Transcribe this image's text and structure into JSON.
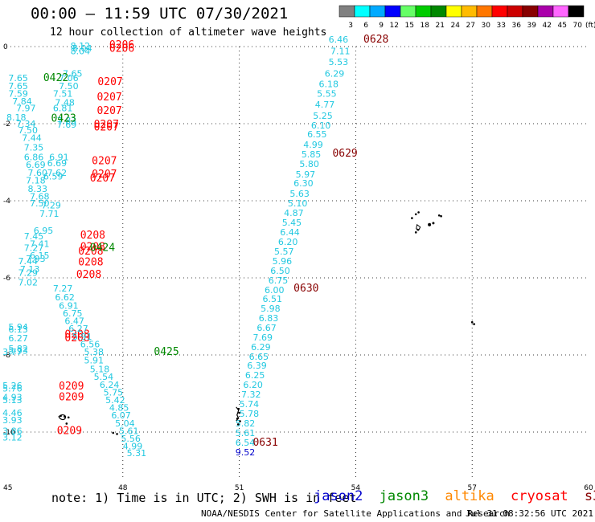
{
  "header": {
    "title": "00:00 — 11:59 UTC 07/30/2021",
    "subtitle": "12 hour collection of altimeter wave heights"
  },
  "legend": {
    "unit": "(ft)",
    "bins": [
      {
        "label": "3",
        "color": "#808080"
      },
      {
        "label": "6",
        "color": "#00ffff"
      },
      {
        "label": "9",
        "color": "#00aaff"
      },
      {
        "label": "12",
        "color": "#0000ff"
      },
      {
        "label": "15",
        "color": "#66ff66"
      },
      {
        "label": "18",
        "color": "#00cc00"
      },
      {
        "label": "21",
        "color": "#008800"
      },
      {
        "label": "24",
        "color": "#ffff00"
      },
      {
        "label": "27",
        "color": "#ffbb00"
      },
      {
        "label": "30",
        "color": "#ff7700"
      },
      {
        "label": "33",
        "color": "#ff0000"
      },
      {
        "label": "36",
        "color": "#cc0000"
      },
      {
        "label": "39",
        "color": "#880000"
      },
      {
        "label": "42",
        "color": "#aa00aa"
      },
      {
        "label": "45",
        "color": "#ff66ff"
      },
      {
        "label": "70",
        "color": "#000000"
      }
    ]
  },
  "axes": {
    "x_ticks": [
      "45",
      "48",
      "51",
      "54",
      "57",
      "60"
    ],
    "y_ticks": [
      "0",
      "-2",
      "-4",
      "-6",
      "-8",
      "-10"
    ]
  },
  "colors": {
    "jason2": "#0000cc",
    "jason3": "#008800",
    "altika": "#ff8800",
    "cryosat": "#ff0000",
    "s3a": "#880000",
    "swh_cyan": "#22c8e0",
    "swh_blue": "#0000cc"
  },
  "tracks": [
    {
      "sat": "cryosat",
      "times": [
        {
          "t": "0206",
          "lon": 47.65,
          "lat": -0.04
        },
        {
          "t": "0206",
          "lon": 47.65,
          "lat": -0.14
        },
        {
          "t": "0207",
          "lon": 47.35,
          "lat": -1.0
        },
        {
          "t": "0207",
          "lon": 47.33,
          "lat": -1.4
        },
        {
          "t": "0207",
          "lon": 47.33,
          "lat": -1.75
        },
        {
          "t": "0207",
          "lon": 47.25,
          "lat": -2.1
        },
        {
          "t": "0207",
          "lon": 47.25,
          "lat": -2.18
        },
        {
          "t": "0207",
          "lon": 47.2,
          "lat": -3.05
        },
        {
          "t": "0207",
          "lon": 47.2,
          "lat": -3.4
        },
        {
          "t": "0207",
          "lon": 47.15,
          "lat": -3.5
        },
        {
          "t": "0208",
          "lon": 46.9,
          "lat": -4.98
        },
        {
          "t": "0208",
          "lon": 46.9,
          "lat": -5.28
        },
        {
          "t": "0208",
          "lon": 46.85,
          "lat": -5.4
        },
        {
          "t": "0208",
          "lon": 46.85,
          "lat": -5.68
        },
        {
          "t": "0208",
          "lon": 46.8,
          "lat": -6.0
        },
        {
          "t": "0208",
          "lon": 46.5,
          "lat": -7.55
        },
        {
          "t": "0208",
          "lon": 46.5,
          "lat": -7.65
        },
        {
          "t": "0209",
          "lon": 46.35,
          "lat": -8.9
        },
        {
          "t": "0209",
          "lon": 46.35,
          "lat": -9.18
        },
        {
          "t": "0209",
          "lon": 46.3,
          "lat": -10.05
        }
      ],
      "values": [
        {
          "v": "8.12",
          "lon": 46.65,
          "lat": -0.06
        },
        {
          "v": "8.04",
          "lon": 46.7,
          "lat": -0.13
        },
        {
          "v": "8.04",
          "lon": 46.65,
          "lat": -0.2
        },
        {
          "v": "7.65",
          "lon": 46.45,
          "lat": -0.78
        },
        {
          "v": "7.06",
          "lon": 46.35,
          "lat": -0.9
        },
        {
          "v": "7.50",
          "lon": 46.35,
          "lat": -1.1
        },
        {
          "v": "7.51",
          "lon": 46.2,
          "lat": -1.3
        },
        {
          "v": "7.48",
          "lon": 46.25,
          "lat": -1.53
        },
        {
          "v": "6.81",
          "lon": 46.2,
          "lat": -1.68
        },
        {
          "v": "7.83",
          "lon": 46.3,
          "lat": -2.0
        },
        {
          "v": "7.69",
          "lon": 46.3,
          "lat": -2.1
        },
        {
          "v": "6.91",
          "lon": 46.1,
          "lat": -2.95
        },
        {
          "v": "6.69",
          "lon": 46.05,
          "lat": -3.1
        },
        {
          "v": "7.62",
          "lon": 46.05,
          "lat": -3.35
        },
        {
          "v": "6.59",
          "lon": 45.95,
          "lat": -3.45
        },
        {
          "v": "7.29",
          "lon": 45.9,
          "lat": -4.2
        },
        {
          "v": "7.71",
          "lon": 45.85,
          "lat": -4.42
        },
        {
          "v": "6.95",
          "lon": 45.7,
          "lat": -4.85
        },
        {
          "v": "7.45",
          "lon": 45.45,
          "lat": -5.0
        },
        {
          "v": "7.41",
          "lon": 45.6,
          "lat": -5.2
        },
        {
          "v": "7.27",
          "lon": 45.45,
          "lat": -5.3
        },
        {
          "v": "6.15",
          "lon": 45.6,
          "lat": -5.5
        },
        {
          "v": "7.44",
          "lon": 45.3,
          "lat": -5.65
        },
        {
          "v": "7.13",
          "lon": 45.35,
          "lat": -5.85
        },
        {
          "v": "7.29",
          "lon": 45.3,
          "lat": -5.95
        },
        {
          "v": "7.02",
          "lon": 45.3,
          "lat": -6.2
        },
        {
          "v": "5.94",
          "lon": 45.05,
          "lat": -7.35
        },
        {
          "v": "6.13",
          "lon": 45.05,
          "lat": -7.42
        },
        {
          "v": "6.27",
          "lon": 45.05,
          "lat": -7.65
        },
        {
          "v": "5.82",
          "lon": 45.05,
          "lat": -7.92
        },
        {
          "v": "5.93",
          "lon": 45.05,
          "lat": -7.97
        },
        {
          "v": "3.77",
          "lon": 44.9,
          "lat": -8.0
        },
        {
          "v": "5.26",
          "lon": 44.9,
          "lat": -8.88
        },
        {
          "v": "5.76",
          "lon": 44.9,
          "lat": -8.95
        },
        {
          "v": "4.93",
          "lon": 44.9,
          "lat": -9.18
        },
        {
          "v": "5.13",
          "lon": 44.9,
          "lat": -9.25
        },
        {
          "v": "4.46",
          "lon": 44.9,
          "lat": -9.58
        },
        {
          "v": "3.93",
          "lon": 44.9,
          "lat": -9.77
        },
        {
          "v": "3.86",
          "lon": 44.9,
          "lat": -10.05
        },
        {
          "v": "3.12",
          "lon": 44.9,
          "lat": -10.22
        }
      ]
    },
    {
      "sat": "jason3",
      "times": [
        {
          "t": "0422",
          "lon": 45.95,
          "lat": -0.9
        },
        {
          "t": "0423",
          "lon": 46.15,
          "lat": -1.95
        },
        {
          "t": "0424",
          "lon": 47.15,
          "lat": -5.3
        },
        {
          "t": "0425",
          "lon": 48.8,
          "lat": -8.0
        }
      ],
      "values": [
        {
          "v": "7.65",
          "lon": 45.05,
          "lat": -0.9
        },
        {
          "v": "7.65",
          "lon": 45.05,
          "lat": -1.1
        },
        {
          "v": "7.59",
          "lon": 45.05,
          "lat": -1.3
        },
        {
          "v": "7.84",
          "lon": 45.15,
          "lat": -1.5
        },
        {
          "v": "7.97",
          "lon": 45.25,
          "lat": -1.68
        },
        {
          "v": "8.18",
          "lon": 45.0,
          "lat": -1.92
        },
        {
          "v": "7.34",
          "lon": 45.25,
          "lat": -2.08
        },
        {
          "v": "7.50",
          "lon": 45.3,
          "lat": -2.25
        },
        {
          "v": "7.44",
          "lon": 45.4,
          "lat": -2.45
        },
        {
          "v": "7.35",
          "lon": 45.45,
          "lat": -2.7
        },
        {
          "v": "6.86",
          "lon": 45.45,
          "lat": -2.95
        },
        {
          "v": "6.69",
          "lon": 45.5,
          "lat": -3.15
        },
        {
          "v": "7.60",
          "lon": 45.55,
          "lat": -3.35
        },
        {
          "v": "7.18",
          "lon": 45.5,
          "lat": -3.55
        },
        {
          "v": "8.33",
          "lon": 45.55,
          "lat": -3.77
        },
        {
          "v": "7.68",
          "lon": 45.6,
          "lat": -3.97
        },
        {
          "v": "7.50",
          "lon": 45.6,
          "lat": -4.15
        },
        {
          "v": "7.93",
          "lon": 45.5,
          "lat": -5.58
        },
        {
          "v": "7.27",
          "lon": 46.2,
          "lat": -6.35
        },
        {
          "v": "6.62",
          "lon": 46.25,
          "lat": -6.58
        },
        {
          "v": "6.91",
          "lon": 46.35,
          "lat": -6.8
        },
        {
          "v": "6.75",
          "lon": 46.45,
          "lat": -7.0
        },
        {
          "v": "6.47",
          "lon": 46.5,
          "lat": -7.2
        },
        {
          "v": "6.27",
          "lon": 46.6,
          "lat": -7.4
        },
        {
          "v": "5.91",
          "lon": 46.7,
          "lat": -7.6
        },
        {
          "v": "6.56",
          "lon": 46.9,
          "lat": -7.8
        },
        {
          "v": "5.38",
          "lon": 47.0,
          "lat": -8.0
        },
        {
          "v": "5.91",
          "lon": 47.0,
          "lat": -8.22
        },
        {
          "v": "5.18",
          "lon": 47.15,
          "lat": -8.45
        },
        {
          "v": "5.54",
          "lon": 47.25,
          "lat": -8.65
        },
        {
          "v": "6.24",
          "lon": 47.4,
          "lat": -8.85
        },
        {
          "v": "5.75",
          "lon": 47.5,
          "lat": -9.05
        },
        {
          "v": "5.42",
          "lon": 47.55,
          "lat": -9.25
        },
        {
          "v": "4.85",
          "lon": 47.65,
          "lat": -9.45
        },
        {
          "v": "6.07",
          "lon": 47.7,
          "lat": -9.65
        },
        {
          "v": "5.04",
          "lon": 47.8,
          "lat": -9.85
        },
        {
          "v": "5.61",
          "lon": 47.9,
          "lat": -10.05
        },
        {
          "v": "5.56",
          "lon": 47.95,
          "lat": -10.25
        },
        {
          "v": "4.99",
          "lon": 48.0,
          "lat": -10.45
        },
        {
          "v": "5.31",
          "lon": 48.1,
          "lat": -10.62
        }
      ]
    },
    {
      "sat": "s3a",
      "times": [
        {
          "t": "0628",
          "lon": 54.2,
          "lat": 0.1
        },
        {
          "t": "0629",
          "lon": 53.4,
          "lat": -2.85
        },
        {
          "t": "0630",
          "lon": 52.4,
          "lat": -6.35
        },
        {
          "t": "0631",
          "lon": 51.35,
          "lat": -10.35
        }
      ],
      "values": [
        {
          "v": "6.46",
          "lon": 53.3,
          "lat": 0.1
        },
        {
          "v": "7.11",
          "lon": 53.35,
          "lat": -0.2
        },
        {
          "v": "5.53",
          "lon": 53.3,
          "lat": -0.48
        },
        {
          "v": "6.29",
          "lon": 53.2,
          "lat": -0.78
        },
        {
          "v": "6.18",
          "lon": 53.05,
          "lat": -1.05
        },
        {
          "v": "5.55",
          "lon": 53.0,
          "lat": -1.3
        },
        {
          "v": "4.77",
          "lon": 52.95,
          "lat": -1.58
        },
        {
          "v": "5.25",
          "lon": 52.9,
          "lat": -1.88
        },
        {
          "v": "6.10",
          "lon": 52.85,
          "lat": -2.12
        },
        {
          "v": "6.55",
          "lon": 52.75,
          "lat": -2.35
        },
        {
          "v": "4.99",
          "lon": 52.65,
          "lat": -2.62
        },
        {
          "v": "5.85",
          "lon": 52.6,
          "lat": -2.88
        },
        {
          "v": "5.80",
          "lon": 52.55,
          "lat": -3.12
        },
        {
          "v": "5.97",
          "lon": 52.45,
          "lat": -3.4
        },
        {
          "v": "6.30",
          "lon": 52.4,
          "lat": -3.62
        },
        {
          "v": "5.63",
          "lon": 52.3,
          "lat": -3.9
        },
        {
          "v": "5.10",
          "lon": 52.25,
          "lat": -4.15
        },
        {
          "v": "4.87",
          "lon": 52.15,
          "lat": -4.4
        },
        {
          "v": "5.45",
          "lon": 52.1,
          "lat": -4.65
        },
        {
          "v": "6.44",
          "lon": 52.05,
          "lat": -4.9
        },
        {
          "v": "6.20",
          "lon": 52.0,
          "lat": -5.15
        },
        {
          "v": "5.57",
          "lon": 51.9,
          "lat": -5.4
        },
        {
          "v": "5.96",
          "lon": 51.85,
          "lat": -5.65
        },
        {
          "v": "6.50",
          "lon": 51.8,
          "lat": -5.9
        },
        {
          "v": "6.75",
          "lon": 51.75,
          "lat": -6.15
        },
        {
          "v": "6.00",
          "lon": 51.65,
          "lat": -6.4
        },
        {
          "v": "6.51",
          "lon": 51.6,
          "lat": -6.62
        },
        {
          "v": "5.98",
          "lon": 51.55,
          "lat": -6.88
        },
        {
          "v": "6.83",
          "lon": 51.5,
          "lat": -7.12
        },
        {
          "v": "6.67",
          "lon": 51.45,
          "lat": -7.38
        },
        {
          "v": "7.69",
          "lon": 51.35,
          "lat": -7.62
        },
        {
          "v": "6.29",
          "lon": 51.3,
          "lat": -7.88
        },
        {
          "v": "6.65",
          "lon": 51.25,
          "lat": -8.12
        },
        {
          "v": "6.39",
          "lon": 51.2,
          "lat": -8.35
        },
        {
          "v": "6.25",
          "lon": 51.15,
          "lat": -8.6
        },
        {
          "v": "6.20",
          "lon": 51.1,
          "lat": -8.85
        },
        {
          "v": "7.32",
          "lon": 51.05,
          "lat": -9.1
        },
        {
          "v": "5.74",
          "lon": 51.0,
          "lat": -9.35
        },
        {
          "v": "5.78",
          "lon": 51.0,
          "lat": -9.6
        },
        {
          "v": "5.82",
          "lon": 50.9,
          "lat": -9.85
        },
        {
          "v": "5.61",
          "lon": 50.9,
          "lat": -10.1
        },
        {
          "v": "6.54",
          "lon": 50.9,
          "lat": -10.35
        }
      ],
      "blue_values": [
        {
          "v": "9.52",
          "lon": 50.9,
          "lat": -10.6
        }
      ]
    }
  ],
  "footer": {
    "note": "note: 1) Time is in UTC; 2) SWH is in feet",
    "sat_labels": {
      "jason2": "jason2",
      "jason3": "jason3",
      "altika": "altika",
      "cryosat": "cryosat",
      "s3a": "s3a"
    },
    "credit": "NOAA/NESDIS Center for Satellite Applications and Research",
    "timestamp": "Jul 31 08:32:56 UTC 2021"
  }
}
